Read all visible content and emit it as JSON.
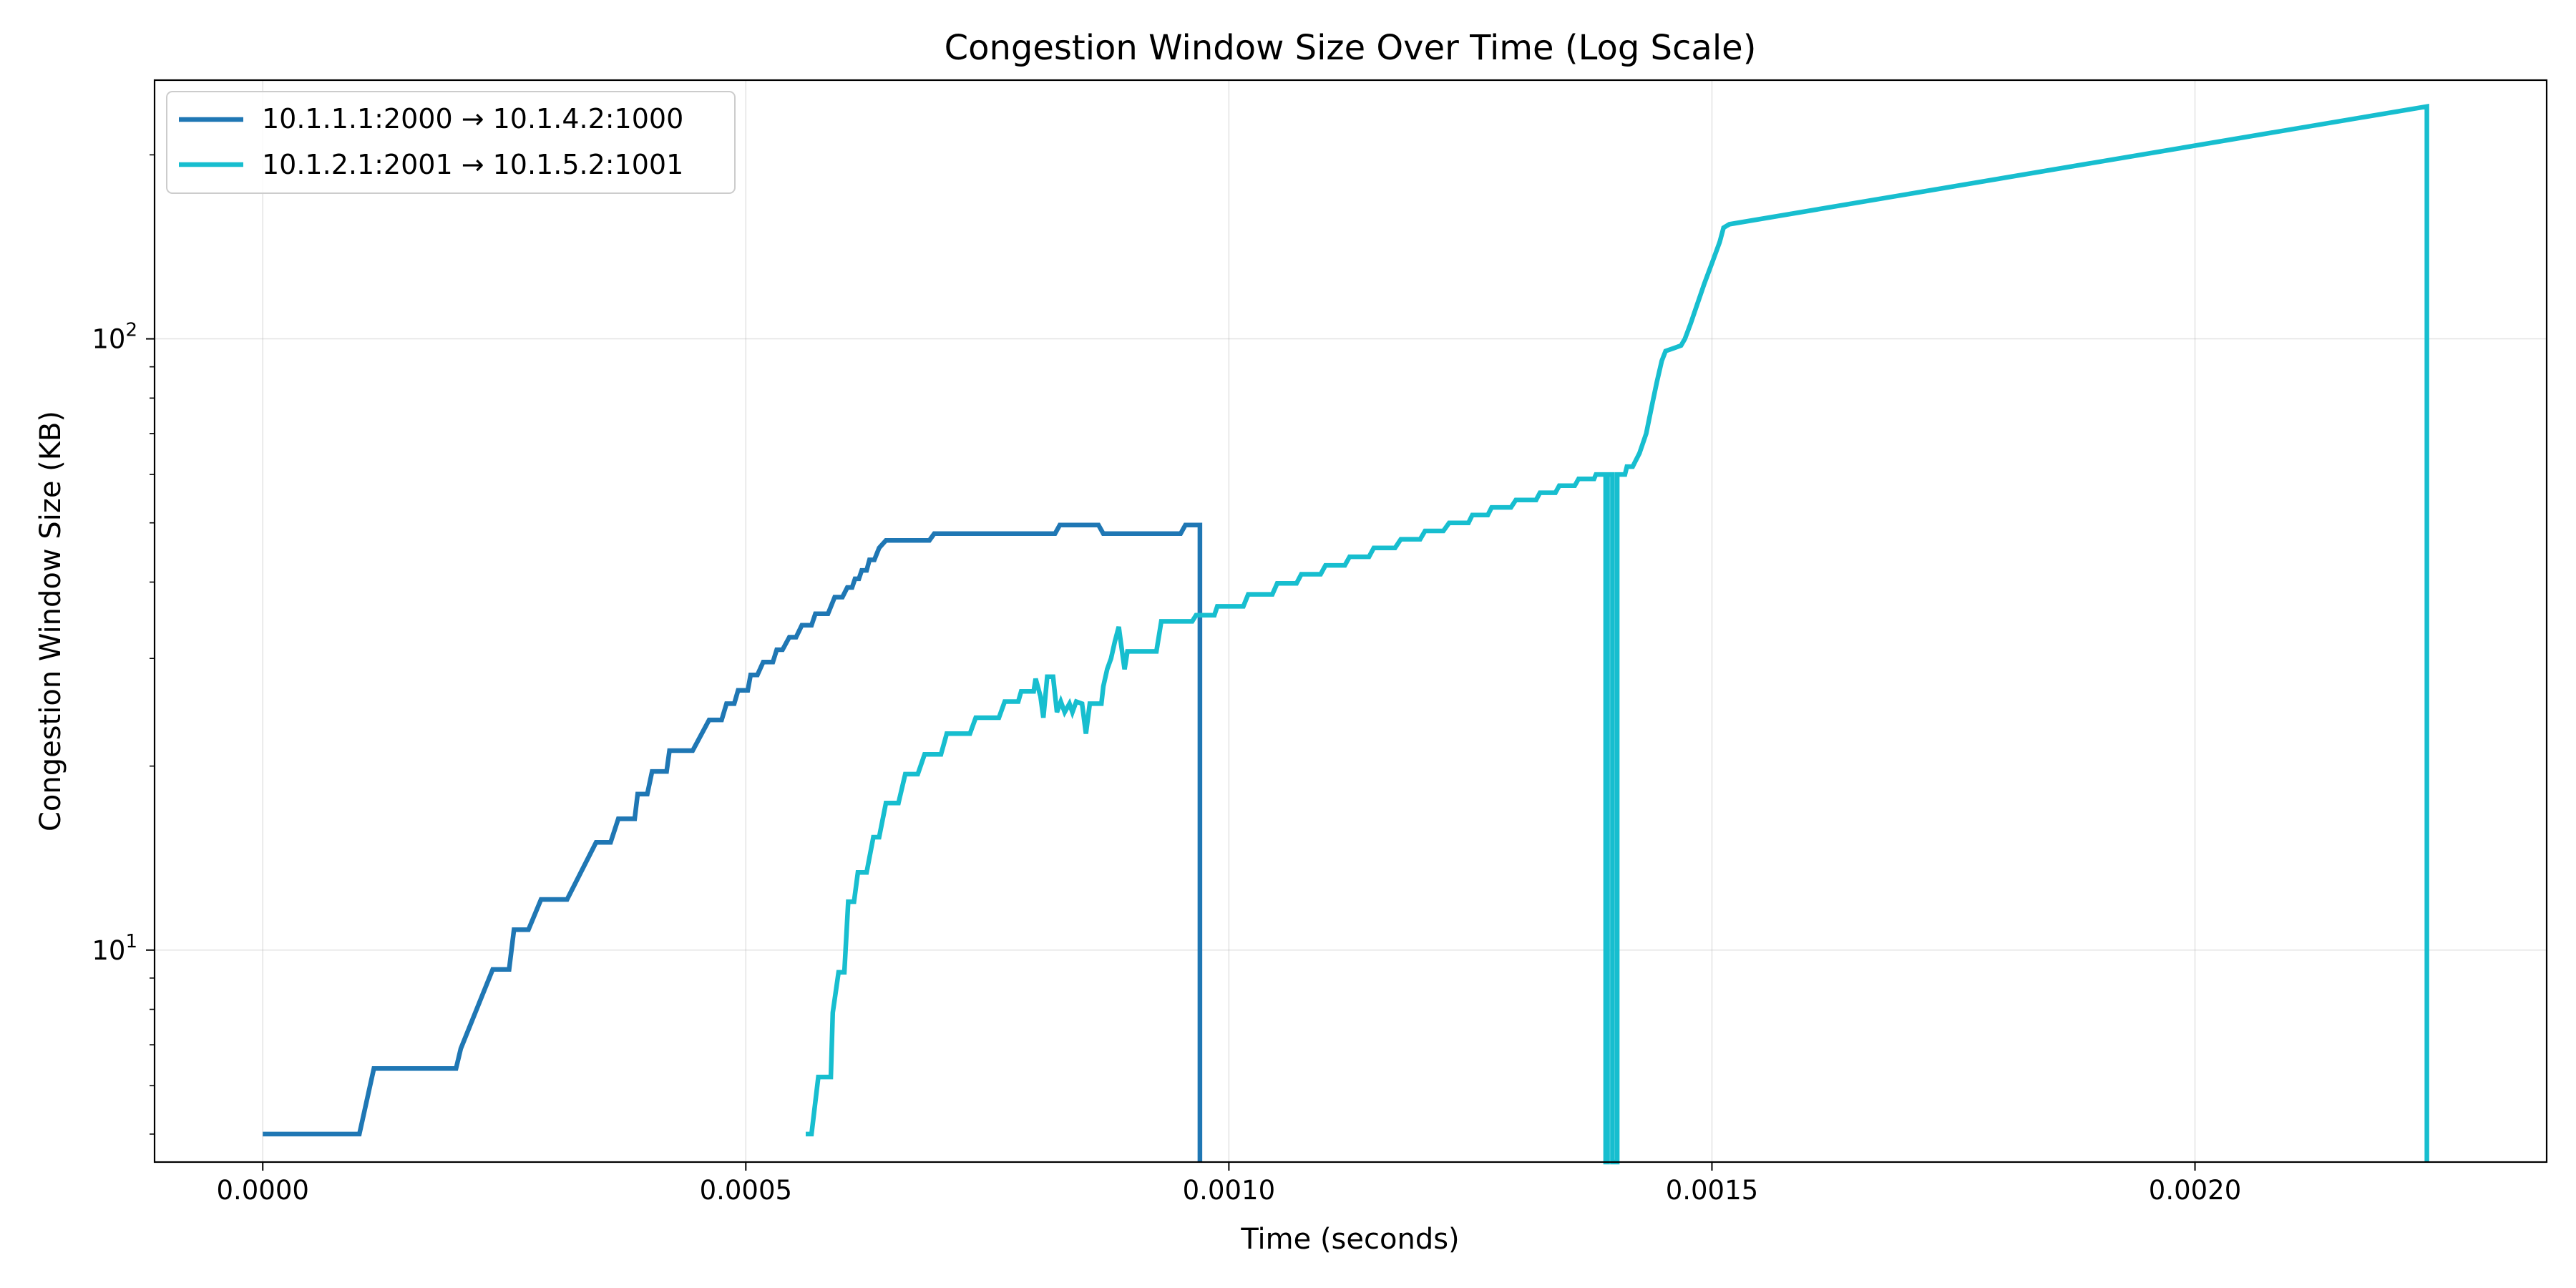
{
  "chart_data": {
    "type": "line",
    "title": "Congestion Window Size Over Time (Log Scale)",
    "xlabel": "Time (seconds)",
    "ylabel": "Congestion Window Size (KB)",
    "xlim": [
      -0.000112,
      0.002364
    ],
    "ylim": [
      4.5,
      265
    ],
    "yscale": "log",
    "grid": true,
    "legend_position": "top-left",
    "x_ticks": [
      {
        "value": 0.0,
        "label": "0.0000"
      },
      {
        "value": 0.0005,
        "label": "0.0005"
      },
      {
        "value": 0.001,
        "label": "0.0010"
      },
      {
        "value": 0.0015,
        "label": "0.0015"
      },
      {
        "value": 0.002,
        "label": "0.0020"
      }
    ],
    "y_major_ticks": [
      {
        "value": 10,
        "base": "10",
        "exp": "1"
      },
      {
        "value": 100,
        "base": "10",
        "exp": "2"
      }
    ],
    "y_minor_ticks": [
      5,
      6,
      7,
      8,
      9,
      20,
      30,
      40,
      50,
      60,
      70,
      80,
      90,
      200
    ],
    "series": [
      {
        "name": "10.1.1.1:2000 → 10.1.4.2:1000",
        "color": "#1f77b4",
        "points": [
          [
            0.0,
            5.0
          ],
          [
            0.0001,
            5.0
          ],
          [
            0.000115,
            6.4
          ],
          [
            0.0002,
            6.4
          ],
          [
            0.000205,
            6.9
          ],
          [
            0.000238,
            9.3
          ],
          [
            0.000255,
            9.3
          ],
          [
            0.00026,
            10.8
          ],
          [
            0.000275,
            10.8
          ],
          [
            0.000288,
            12.1
          ],
          [
            0.000315,
            12.1
          ],
          [
            0.000345,
            15.0
          ],
          [
            0.00036,
            15.0
          ],
          [
            0.000368,
            16.4
          ],
          [
            0.000385,
            16.4
          ],
          [
            0.000388,
            18.0
          ],
          [
            0.000398,
            18.0
          ],
          [
            0.000403,
            19.6
          ],
          [
            0.000418,
            19.6
          ],
          [
            0.000421,
            21.2
          ],
          [
            0.000445,
            21.2
          ],
          [
            0.000462,
            23.8
          ],
          [
            0.000475,
            23.8
          ],
          [
            0.00048,
            25.3
          ],
          [
            0.000488,
            25.3
          ],
          [
            0.000492,
            26.6
          ],
          [
            0.000502,
            26.6
          ],
          [
            0.000505,
            28.2
          ],
          [
            0.000512,
            28.2
          ],
          [
            0.000518,
            29.6
          ],
          [
            0.000528,
            29.6
          ],
          [
            0.000532,
            31.0
          ],
          [
            0.000538,
            31.0
          ],
          [
            0.000545,
            32.5
          ],
          [
            0.000552,
            32.5
          ],
          [
            0.000558,
            34.0
          ],
          [
            0.000568,
            34.0
          ],
          [
            0.000572,
            35.5
          ],
          [
            0.000585,
            35.5
          ],
          [
            0.000592,
            37.8
          ],
          [
            0.0006,
            37.8
          ],
          [
            0.000605,
            39.2
          ],
          [
            0.00061,
            39.2
          ],
          [
            0.000613,
            40.5
          ],
          [
            0.000617,
            40.5
          ],
          [
            0.00062,
            41.8
          ],
          [
            0.000625,
            41.8
          ],
          [
            0.000628,
            43.5
          ],
          [
            0.000633,
            43.5
          ],
          [
            0.000638,
            45.5
          ],
          [
            0.000645,
            46.8
          ],
          [
            0.00069,
            46.8
          ],
          [
            0.000695,
            48.0
          ],
          [
            0.00082,
            48.0
          ],
          [
            0.000825,
            49.6
          ],
          [
            0.000865,
            49.6
          ],
          [
            0.00087,
            48.0
          ],
          [
            0.00095,
            48.0
          ],
          [
            0.000955,
            49.6
          ],
          [
            0.00097,
            49.6
          ],
          [
            0.00097,
            4.5
          ]
        ]
      },
      {
        "name": "10.1.2.1:2001 → 10.1.5.2:1001",
        "color": "#17becf",
        "points": [
          [
            0.000562,
            5.0
          ],
          [
            0.000568,
            5.0
          ],
          [
            0.000575,
            6.2
          ],
          [
            0.000588,
            6.2
          ],
          [
            0.00059,
            7.9
          ],
          [
            0.000596,
            9.2
          ],
          [
            0.000602,
            9.2
          ],
          [
            0.000606,
            12.0
          ],
          [
            0.000612,
            12.0
          ],
          [
            0.000616,
            13.4
          ],
          [
            0.000625,
            13.4
          ],
          [
            0.000632,
            15.3
          ],
          [
            0.000638,
            15.3
          ],
          [
            0.000645,
            17.4
          ],
          [
            0.000658,
            17.4
          ],
          [
            0.000665,
            19.4
          ],
          [
            0.000678,
            19.4
          ],
          [
            0.000685,
            20.9
          ],
          [
            0.000702,
            20.9
          ],
          [
            0.000708,
            22.6
          ],
          [
            0.000732,
            22.6
          ],
          [
            0.000738,
            24.0
          ],
          [
            0.000762,
            24.0
          ],
          [
            0.000768,
            25.5
          ],
          [
            0.000782,
            25.5
          ],
          [
            0.000785,
            26.5
          ],
          [
            0.000798,
            26.5
          ],
          [
            0.0008,
            27.8
          ],
          [
            0.000805,
            26.0
          ],
          [
            0.000808,
            24.0
          ],
          [
            0.000812,
            28.0
          ],
          [
            0.000818,
            28.0
          ],
          [
            0.000822,
            24.5
          ],
          [
            0.000826,
            25.5
          ],
          [
            0.00083,
            24.5
          ],
          [
            0.000835,
            25.3
          ],
          [
            0.000838,
            24.5
          ],
          [
            0.000842,
            25.5
          ],
          [
            0.000848,
            25.3
          ],
          [
            0.000852,
            22.6
          ],
          [
            0.000856,
            25.3
          ],
          [
            0.000868,
            25.3
          ],
          [
            0.00087,
            27.0
          ],
          [
            0.000874,
            28.8
          ],
          [
            0.000878,
            30.0
          ],
          [
            0.000882,
            32.0
          ],
          [
            0.000886,
            33.8
          ],
          [
            0.000888,
            32.0
          ],
          [
            0.000892,
            28.8
          ],
          [
            0.000895,
            30.8
          ],
          [
            0.000925,
            30.8
          ],
          [
            0.00093,
            34.5
          ],
          [
            0.000962,
            34.5
          ],
          [
            0.000966,
            35.3
          ],
          [
            0.000985,
            35.3
          ],
          [
            0.000988,
            36.5
          ],
          [
            0.001015,
            36.5
          ],
          [
            0.00102,
            38.2
          ],
          [
            0.001045,
            38.2
          ],
          [
            0.00105,
            39.8
          ],
          [
            0.00107,
            39.8
          ],
          [
            0.001075,
            41.2
          ],
          [
            0.001095,
            41.2
          ],
          [
            0.0011,
            42.6
          ],
          [
            0.00112,
            42.6
          ],
          [
            0.001125,
            44.0
          ],
          [
            0.001145,
            44.0
          ],
          [
            0.00115,
            45.5
          ],
          [
            0.001172,
            45.5
          ],
          [
            0.001178,
            47.0
          ],
          [
            0.001198,
            47.0
          ],
          [
            0.001203,
            48.5
          ],
          [
            0.001222,
            48.5
          ],
          [
            0.001228,
            50.0
          ],
          [
            0.001248,
            50.0
          ],
          [
            0.001252,
            51.5
          ],
          [
            0.001268,
            51.5
          ],
          [
            0.001272,
            53.0
          ],
          [
            0.001292,
            53.0
          ],
          [
            0.001297,
            54.5
          ],
          [
            0.001318,
            54.5
          ],
          [
            0.001322,
            56.0
          ],
          [
            0.001338,
            56.0
          ],
          [
            0.001342,
            57.5
          ],
          [
            0.001358,
            57.5
          ],
          [
            0.001362,
            59.0
          ],
          [
            0.001378,
            59.0
          ],
          [
            0.00138,
            60.0
          ],
          [
            0.00139,
            60.0
          ],
          [
            0.00139,
            4.5
          ],
          [
            0.001392,
            4.5
          ],
          [
            0.001392,
            60.0
          ],
          [
            0.001397,
            60.0
          ],
          [
            0.001397,
            4.5
          ],
          [
            0.001402,
            4.5
          ],
          [
            0.001402,
            60.0
          ],
          [
            0.00141,
            60.0
          ],
          [
            0.001412,
            61.8
          ],
          [
            0.001418,
            61.8
          ],
          [
            0.001425,
            65.0
          ],
          [
            0.001432,
            70.0
          ],
          [
            0.001438,
            78.0
          ],
          [
            0.001443,
            85.0
          ],
          [
            0.001448,
            92.0
          ],
          [
            0.001452,
            95.5
          ],
          [
            0.00146,
            96.5
          ],
          [
            0.001468,
            97.5
          ],
          [
            0.001472,
            100.0
          ],
          [
            0.001478,
            106.0
          ],
          [
            0.001484,
            113.0
          ],
          [
            0.001492,
            123.0
          ],
          [
            0.0015,
            133.0
          ],
          [
            0.001508,
            144.0
          ],
          [
            0.001512,
            152.0
          ],
          [
            0.001518,
            154.0
          ],
          [
            0.00224,
            240.0
          ],
          [
            0.00224,
            4.5
          ]
        ]
      }
    ]
  }
}
